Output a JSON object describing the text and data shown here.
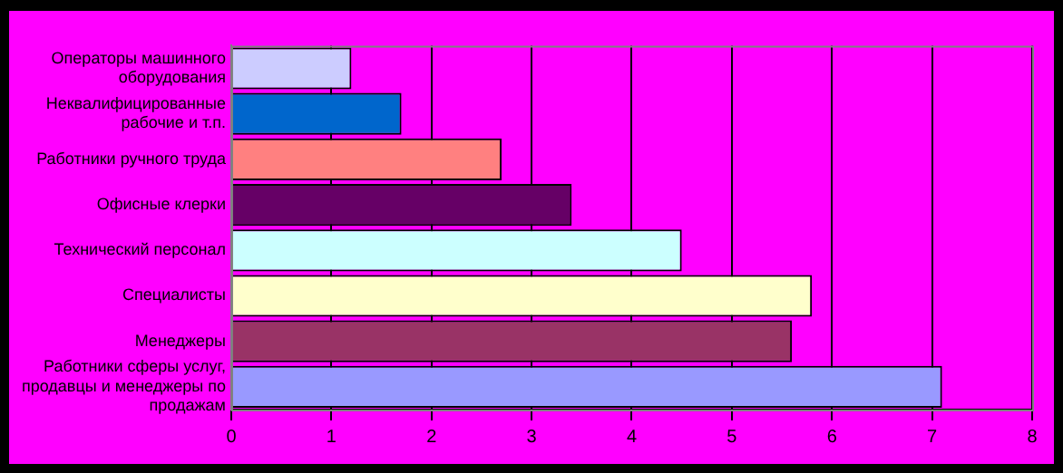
{
  "chart_data": {
    "type": "bar",
    "orientation": "horizontal",
    "categories": [
      "Операторы машинного оборудования",
      "Неквалифицированные рабочие и т.п.",
      "Работники ручного труда",
      "Офисные клерки",
      "Технический персонал",
      "Специалисты",
      "Менеджеры",
      "Работники сферы услуг, продавцы и менеджеры по продажам"
    ],
    "values": [
      1.2,
      1.7,
      2.7,
      3.4,
      4.5,
      5.8,
      5.6,
      7.1
    ],
    "colors": [
      "#ccccff",
      "#0066cc",
      "#ff8080",
      "#660066",
      "#ccffff",
      "#ffffcc",
      "#993366",
      "#9999ff"
    ],
    "xlim": [
      0,
      8
    ],
    "xticks": [
      0,
      1,
      2,
      3,
      4,
      5,
      6,
      7,
      8
    ],
    "grid": "x",
    "legend": false
  }
}
